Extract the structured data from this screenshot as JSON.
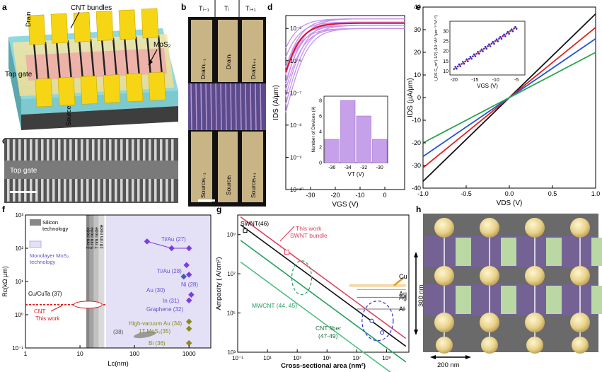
{
  "figure": {
    "panel_labels": [
      "a",
      "b",
      "c",
      "d",
      "e",
      "f",
      "g",
      "h"
    ],
    "panel_a": {
      "cnt_bundles": "CNT bundles",
      "drain": "Drain",
      "source": "Source",
      "mos2": "MoS₂",
      "top_gate": "Top gate"
    },
    "panel_b": {
      "cols": [
        "Tᵢ₋₁",
        "Tᵢ",
        "Tᵢ₊₁"
      ],
      "drains": [
        "Drainᵢ₋₁",
        "Drainᵢ",
        "Drainᵢ₊₁"
      ],
      "sources": [
        "Sourceᵢ₋₁",
        "Sourceᵢ",
        "Sourceᵢ₊₁"
      ]
    },
    "panel_c": {
      "top_gate": "Top gate"
    },
    "panel_h": {
      "scale_v": "300 nm",
      "scale_h": "200 nm"
    }
  },
  "chart_data": [
    {
      "id": "d",
      "type": "line",
      "xlabel": "V_GS (V)",
      "ylabel": "I_DS (A/μm)",
      "xlim": [
        -40,
        8
      ],
      "ylim_log10": [
        -10,
        -4.6
      ],
      "x_ticks": [
        "-30",
        "-20",
        "-10",
        "0"
      ],
      "y_ticks": [
        "10⁻¹⁰",
        "10⁻⁹",
        "10⁻⁸",
        "10⁻⁷",
        "10⁻⁶",
        "10⁻⁵"
      ],
      "series": [
        {
          "name": "devices",
          "color": "#c792ee",
          "vt": [
            -37,
            -36,
            -35,
            -34.5,
            -34,
            -33.5,
            -33,
            -32.5,
            -32,
            -31,
            -30.5,
            -30
          ]
        },
        {
          "name": "median",
          "color": "#e0102a",
          "vt": [
            -34
          ]
        }
      ],
      "inset": {
        "type": "bar",
        "xlabel": "V_T (V)",
        "ylabel": "Number of Devices (#)",
        "categories": [
          "-36",
          "-34",
          "-32",
          "-30"
        ],
        "values": [
          3,
          8,
          6,
          3
        ],
        "ylim": [
          0,
          8
        ],
        "y_ticks": [
          "0",
          "2",
          "4",
          "6",
          "8"
        ]
      }
    },
    {
      "id": "e",
      "type": "line",
      "xlabel": "V_DS (V)",
      "ylabel": "I_DS (μA/μm)",
      "xlim": [
        -1.0,
        1.0
      ],
      "ylim": [
        -40,
        40
      ],
      "x_ticks": [
        "-1.0",
        "-0.5",
        "0.0",
        "0.5",
        "1.0"
      ],
      "y_ticks": [
        "-40",
        "-30",
        "-20",
        "-10",
        "0",
        "10",
        "20",
        "30",
        "40"
      ],
      "series": [
        {
          "name": "black",
          "color": "#111111",
          "slope": 37
        },
        {
          "name": "red",
          "color": "#e02020",
          "slope": 31
        },
        {
          "name": "blue",
          "color": "#1d55d6",
          "slope": 26
        },
        {
          "name": "green",
          "color": "#2aa34a",
          "slope": 20
        }
      ],
      "inset": {
        "type": "scatter",
        "xlabel": "V_GS (V)",
        "ylabel": "I_DS G_m^(-1/2) (10⁻³A¹ᐟ²μm⁻¹ᐟ²V¹ᐟ²)",
        "xlim": [
          -21,
          -3
        ],
        "ylim": [
          8,
          35
        ],
        "x_ticks": [
          "-20",
          "-15",
          "-10",
          "-5"
        ],
        "y_ticks": [
          "10",
          "15",
          "20",
          "25",
          "30"
        ],
        "x_start": -20,
        "x_end": -5,
        "y_start": 11,
        "y_end": 32,
        "color": "#2b2bd0"
      }
    },
    {
      "id": "f",
      "type": "scatter",
      "xlabel": "L_c(nm)",
      "ylabel": "R_c(kΩ μm)",
      "x_log": true,
      "y_log": true,
      "xlim_log10": [
        0,
        3.4
      ],
      "ylim_log10": [
        -1,
        3
      ],
      "x_ticks": [
        "1",
        "10",
        "100",
        "1000"
      ],
      "y_ticks": [
        "10⁻¹",
        "10⁰",
        "10¹",
        "10²",
        "10³"
      ],
      "legend": [
        "Silicon technology",
        "Monolayer MoS₂ technology"
      ],
      "nodes": [
        "3 nm node",
        "5 nm node",
        "7 nm node",
        "10 nm node"
      ],
      "points": [
        {
          "label": "Ti/Au (27)",
          "x": [
            170,
            480,
            1000
          ],
          "y": [
            160,
            100,
            100
          ],
          "color": "#7a3de0"
        },
        {
          "label": "Ti/Au (28)",
          "x": [
            900
          ],
          "y": [
            31
          ],
          "color": "#7a3de0"
        },
        {
          "label": "Ni (28)",
          "x": [
            1000
          ],
          "y": [
            16
          ],
          "color": "#7a3de0"
        },
        {
          "label": "Au (30)",
          "x": [
            800
          ],
          "y": [
            14
          ],
          "color": "#3e5cb8"
        },
        {
          "label": "In (31)",
          "x": [
            1100
          ],
          "y": [
            4.0
          ],
          "color": "#7a3de0"
        },
        {
          "label": "Graphene (32)",
          "x": [
            1000
          ],
          "y": [
            2.7
          ],
          "color": "#7a3de0"
        },
        {
          "label": "High-vacuum Au (34)",
          "x": [
            1000
          ],
          "y": [
            0.62
          ],
          "color": "#8a8a20"
        },
        {
          "label": "1T MoS₂(35)",
          "x": [
            1000
          ],
          "y": [
            0.38
          ],
          "color": "#8a8a20"
        },
        {
          "label": "Bi (36)",
          "x": [
            1000
          ],
          "y": [
            0.14
          ],
          "color": "#8a8a20"
        },
        {
          "label": "(38)",
          "x": [
            120,
            200
          ],
          "y": [
            0.28,
            0.22
          ],
          "color": "#888888"
        },
        {
          "label": "Cu/CuTa (37)",
          "x": [
            12
          ],
          "y": [
            2.0
          ],
          "color": "#999999"
        }
      ],
      "cnt_label": "CNT",
      "this_work": "This work",
      "cnt_value": 2.0
    },
    {
      "id": "g",
      "type": "line",
      "xlabel": "Cross-sectional area (nm²)",
      "ylabel": "Ampacity ( A/cm²)",
      "x_log": true,
      "y_log": true,
      "xlim_log10": [
        -1,
        10.5
      ],
      "ylim_log10": [
        3,
        10
      ],
      "x_ticks": [
        "10⁻¹",
        "10¹",
        "10³",
        "10⁵",
        "10⁷",
        "10⁹"
      ],
      "y_ticks": [
        "10³",
        "10⁵",
        "10⁷",
        "10⁹"
      ],
      "series": [
        {
          "name": "SWNT (46)",
          "color": "#111111",
          "x": [
            -0.8,
            10.3
          ],
          "y": [
            9.5,
            3.3
          ]
        },
        {
          "name": "This work SWNT bundle",
          "color": "#e04060",
          "x": [
            -0.8,
            10.3
          ],
          "y": [
            9.9,
            3.7
          ]
        },
        {
          "name": "MWCNT (44, 45)",
          "color": "#22a060",
          "x": [
            -0.8,
            10.3
          ],
          "y": [
            8.7,
            2.5
          ]
        },
        {
          "name": "CNT fiber (47-49)",
          "color": "#4dbf7f",
          "x": [
            -0.8,
            10.3
          ],
          "y": [
            7.6,
            1.4
          ]
        }
      ],
      "metals": [
        {
          "name": "Cu",
          "y": 6.4,
          "color": "#e89a20"
        },
        {
          "name": "Au",
          "y": 6.2,
          "color": "#c8a060"
        },
        {
          "name": "Ag",
          "y": 5.8,
          "color": "#777777"
        },
        {
          "name": "Al",
          "y": 5.2,
          "color": "#777777"
        }
      ],
      "labels": {
        "swnt": "SWNT(46)",
        "this_work": "This work",
        "swnt_bundle": "SWNT bundle",
        "mwcnt": "MWCNT (44, 45)",
        "cnt_fiber": "CNT fiber",
        "cnt_fiber_ref": "(47-49)"
      }
    }
  ]
}
